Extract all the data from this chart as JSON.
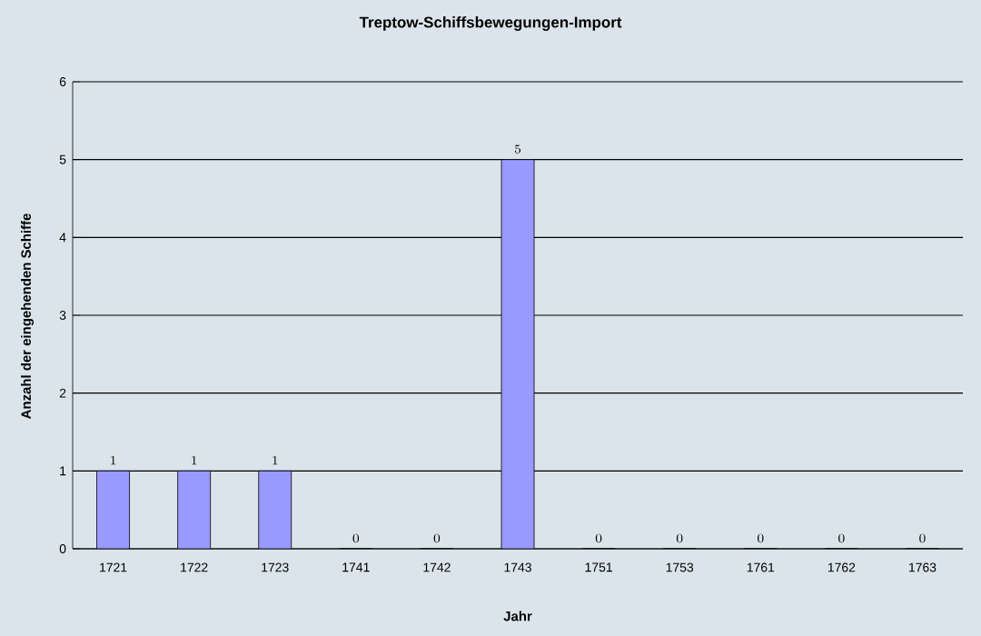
{
  "chart_data": {
    "type": "bar",
    "title": "Treptow-Schiffsbewegungen-Import",
    "xlabel": "Jahr",
    "ylabel": "Anzahl der eingehenden Schiffe",
    "categories": [
      "1721",
      "1722",
      "1723",
      "1741",
      "1742",
      "1743",
      "1751",
      "1753",
      "1761",
      "1762",
      "1763"
    ],
    "values": [
      1,
      1,
      1,
      0,
      0,
      5,
      0,
      0,
      0,
      0,
      0
    ],
    "color": "#9999ff",
    "ylim": [
      0,
      6
    ],
    "yticks": [
      0,
      1,
      2,
      3,
      4,
      5,
      6
    ],
    "grid": "y",
    "data_labels": true
  }
}
